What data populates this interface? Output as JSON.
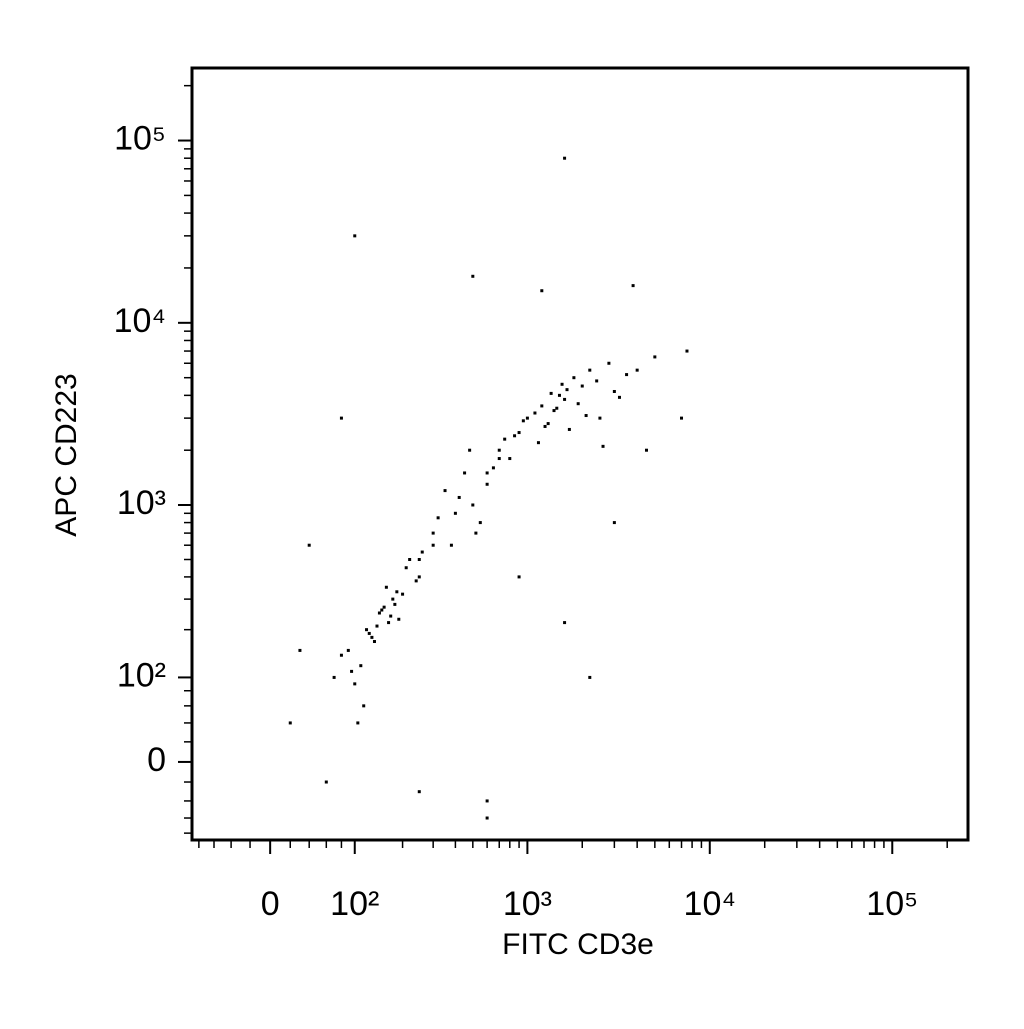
{
  "chart_data": {
    "type": "scatter",
    "x_label": "FITC CD3e",
    "y_label": "APC CD223",
    "scale": "biexponential",
    "color": "#000000",
    "xlim": [
      -90,
      260000
    ],
    "ylim": [
      -90,
      250000
    ],
    "xticks": [
      0,
      {
        "value": 100,
        "label": "10²"
      },
      {
        "value": 1000,
        "label": "10³"
      },
      {
        "value": 10000,
        "label": "10⁴"
      },
      {
        "value": 100000,
        "label": "10⁵"
      }
    ],
    "yticks": [
      0,
      {
        "value": 100,
        "label": "10²"
      },
      {
        "value": 1000,
        "label": "10³"
      },
      {
        "value": 10000,
        "label": "10⁴"
      },
      {
        "value": 100000,
        "label": "10⁵"
      }
    ],
    "xminorticks": [
      -80,
      -60,
      -40,
      -20,
      20,
      40,
      60,
      80,
      200,
      300,
      400,
      500,
      600,
      700,
      800,
      900,
      2000,
      3000,
      4000,
      5000,
      6000,
      7000,
      8000,
      9000,
      20000,
      30000,
      40000,
      50000,
      60000,
      70000,
      80000,
      90000,
      200000
    ],
    "yminorticks": [
      -80,
      -60,
      -40,
      -20,
      20,
      40,
      60,
      80,
      200,
      300,
      400,
      500,
      600,
      700,
      800,
      900,
      2000,
      3000,
      4000,
      5000,
      6000,
      7000,
      8000,
      9000,
      20000,
      30000,
      40000,
      50000,
      60000,
      70000,
      80000,
      90000,
      200000
    ],
    "x": [
      120,
      150,
      90,
      200,
      170,
      130,
      110,
      250,
      180,
      140,
      100,
      160,
      220,
      80,
      190,
      135,
      115,
      175,
      145,
      210,
      95,
      260,
      125,
      155,
      185,
      70,
      240,
      165,
      105,
      300,
      1200,
      1500,
      900,
      2000,
      2500,
      1100,
      1800,
      700,
      3000,
      1300,
      1600,
      2200,
      800,
      1000,
      1400,
      2800,
      3500,
      1700,
      600,
      1900,
      2400,
      1150,
      1350,
      950,
      4000,
      2100,
      1250,
      1650,
      750,
      3200,
      5000,
      1450,
      2600,
      850,
      1550,
      300,
      400,
      350,
      500,
      450,
      600,
      250,
      550,
      700,
      380,
      420,
      480,
      320,
      650,
      520,
      100,
      1600,
      500,
      3800,
      1200,
      600,
      2200,
      900,
      4500,
      7000,
      40,
      30,
      60,
      20,
      80,
      1600,
      250,
      3000,
      7500,
      600
    ],
    "y": [
      200,
      260,
      150,
      320,
      240,
      180,
      120,
      400,
      280,
      210,
      90,
      350,
      500,
      140,
      230,
      170,
      60,
      300,
      250,
      450,
      110,
      550,
      190,
      270,
      330,
      100,
      380,
      220,
      40,
      600,
      3500,
      4000,
      2500,
      4500,
      3000,
      3200,
      5000,
      2000,
      4200,
      2800,
      3800,
      5500,
      1800,
      3000,
      3300,
      6000,
      5200,
      2600,
      1500,
      3600,
      4800,
      2200,
      4100,
      2900,
      5500,
      3100,
      2700,
      4300,
      2300,
      3900,
      6500,
      3400,
      2100,
      2400,
      4600,
      700,
      900,
      1200,
      1000,
      1500,
      1300,
      500,
      800,
      1800,
      600,
      1100,
      2000,
      850,
      1600,
      700,
      30000,
      80000,
      18000,
      16000,
      15000,
      -40,
      100,
      400,
      2000,
      3000,
      600,
      150,
      -20,
      40,
      3000,
      220,
      -30,
      800,
      7000,
      -60
    ]
  }
}
